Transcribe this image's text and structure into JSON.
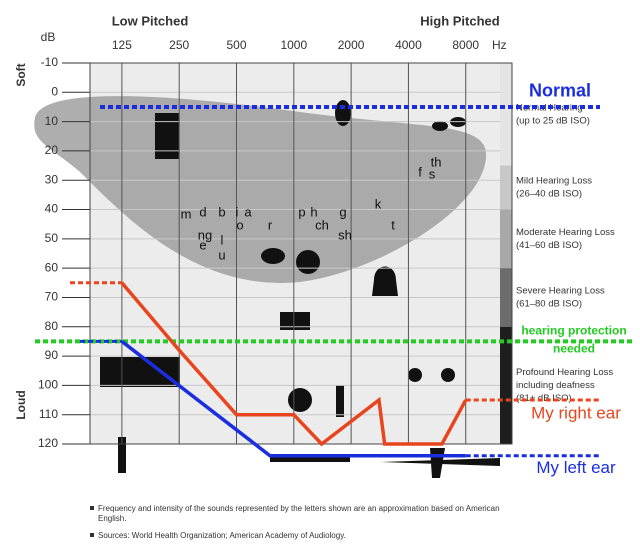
{
  "chart_data": {
    "type": "line",
    "top_labels": {
      "left": "Low Pitched",
      "right": "High Pitched"
    },
    "y_unit": "dB",
    "x_unit": "Hz",
    "y_soft": "Soft",
    "y_loud": "Loud",
    "x": [
      125,
      250,
      500,
      1000,
      1400,
      2800,
      3000,
      6000,
      8000
    ],
    "series": [
      {
        "name": "My right ear",
        "color": "#e8451e",
        "x": [
          125,
          250,
          500,
          1000,
          1400,
          2800,
          3000,
          6000,
          8000
        ],
        "values": [
          65,
          88,
          110,
          110,
          120,
          105,
          120,
          120,
          105
        ]
      },
      {
        "name": "My left ear",
        "color": "#1a2ee0",
        "x": [
          125,
          750,
          8000
        ],
        "values": [
          85,
          124,
          124
        ]
      }
    ],
    "xlim": [
      85,
      14000
    ],
    "xticks": [
      125,
      250,
      500,
      1000,
      2000,
      4000,
      8000
    ],
    "log_x": true,
    "ylim": [
      -10,
      120
    ],
    "yticks": [
      -10,
      0,
      10,
      20,
      30,
      40,
      50,
      60,
      70,
      80,
      90,
      100,
      110,
      120
    ],
    "grid": true,
    "reference_lines": [
      {
        "label": [
          "Normal"
        ],
        "value": 5,
        "color": "#1a2ee0"
      },
      {
        "label": [
          "hearing protection",
          "needed"
        ],
        "value": 85,
        "color": "#22cc22"
      }
    ],
    "zones": [
      {
        "label": [
          "Normal Hearing",
          "(up to 25 dB ISO)"
        ],
        "range": [
          -10,
          25
        ],
        "color": "#e4e4e4"
      },
      {
        "label": [
          "Mild Hearing Loss",
          "(26–40 dB ISO)"
        ],
        "range": [
          25,
          40
        ],
        "color": "#c8c8c8"
      },
      {
        "label": [
          "Moderate Hearing Loss",
          "(41–60 dB ISO)"
        ],
        "range": [
          40,
          60
        ],
        "color": "#a8a8a8"
      },
      {
        "label": [
          "Severe Hearing Loss",
          "(61–80 dB ISO)"
        ],
        "range": [
          60,
          80
        ],
        "color": "#6c6c6c"
      },
      {
        "label": [
          "Profound Hearing Loss",
          "including deafness",
          "(81+ dB ISO)"
        ],
        "range": [
          80,
          120
        ],
        "color": "#1e1e1e"
      }
    ],
    "speech_letters": [
      "m",
      "d",
      "b",
      "i",
      "a",
      "ng",
      "e",
      "l",
      "u",
      "o",
      "r",
      "p",
      "h",
      "ch",
      "g",
      "sh",
      "k",
      "t",
      "f",
      "s",
      "th"
    ],
    "footnotes": [
      "Frequency and intensity of the sounds represented by the letters shown are an approximation based on American English.",
      "Sources: World Health Organization; American Academy of Audiology."
    ]
  }
}
